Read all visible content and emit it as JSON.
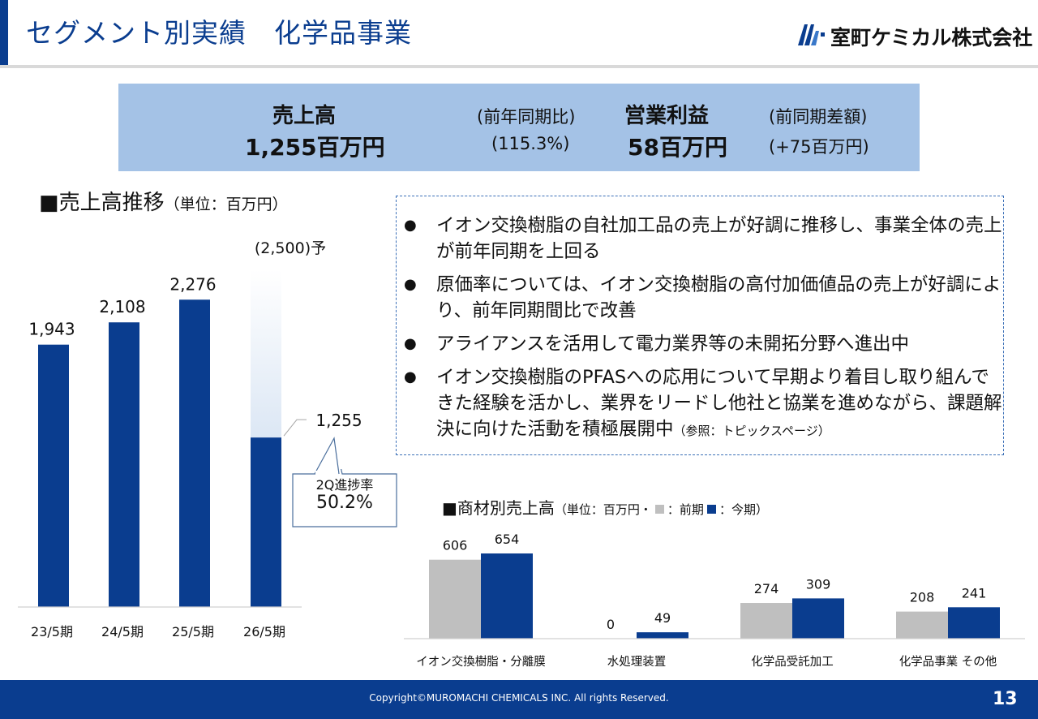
{
  "header": {
    "title": "セグメント別実績　化学品事業",
    "company": "室町ケミカル株式会社"
  },
  "summary": {
    "sales_label": "売上高",
    "sales_value": "1,255百万円",
    "yoy_label": "(前年同期比)",
    "yoy_value": "(115.3%)",
    "profit_label": "営業利益",
    "profit_value": "58百万円",
    "diff_label": "(前同期差額)",
    "diff_value": "(+75百万円)"
  },
  "sales_heading": {
    "title": "■売上高推移",
    "unit": "（単位：百万円）"
  },
  "callout": {
    "label": "2Q進捗率",
    "value": "50.2%"
  },
  "points": [
    "イオン交換樹脂の自社加工品の売上が好調に推移し、事業全体の売上が前年同期を上回る",
    "原価率については、イオン交換樹脂の高付加価値品の売上が好調により、前年同期間比で改善",
    "アライアンスを活用して電力業界等の未開拓分野へ進出中",
    "イオン交換樹脂のPFASへの応用について早期より着目し取り組んできた経験を活かし、業界をリードし他社と協業を進めながら、課題解決に向けた活動を積極展開中"
  ],
  "points_ref": "（参照：トピックスページ）",
  "bullet_char": "●",
  "material_heading": {
    "title": "■商材別売上高",
    "unit_prefix": "（単位：百万円・",
    "prev_label": "：前期",
    "curr_label": "：今期）"
  },
  "footer": {
    "copyright": "Copyright©MUROMACHI CHEMICALS INC. All rights Reserved.",
    "page": "13"
  },
  "colors": {
    "brand": "#0a3d8f",
    "summary_bg": "#a4c2e6",
    "prev_bar": "#bfbfbf",
    "forecast_light": "#dde8f5"
  },
  "chart_data": [
    {
      "type": "bar",
      "title": "売上高推移",
      "unit": "百万円",
      "categories": [
        "23/5期",
        "24/5期",
        "25/5期",
        "26/5期"
      ],
      "values": [
        1943,
        2108,
        2276,
        1255
      ],
      "labels": [
        "1,943",
        "2,108",
        "2,276",
        "1,255"
      ],
      "forecast": {
        "category": "26/5期",
        "value": 2500,
        "label": "(2,500)予"
      },
      "ylim": [
        0,
        2500
      ]
    },
    {
      "type": "bar",
      "title": "商材別売上高",
      "unit": "百万円",
      "categories": [
        "イオン交換樹脂・分離膜",
        "水処理装置",
        "化学品受託加工",
        "化学品事業 その他"
      ],
      "series": [
        {
          "name": "前期",
          "values": [
            606,
            0,
            274,
            208
          ]
        },
        {
          "name": "今期",
          "values": [
            654,
            49,
            309,
            241
          ]
        }
      ],
      "ylim": [
        0,
        654
      ]
    }
  ]
}
